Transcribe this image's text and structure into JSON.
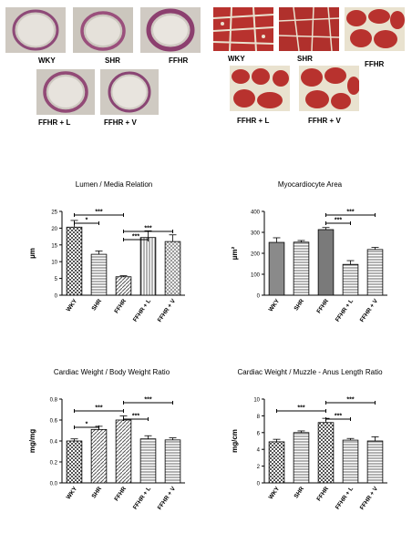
{
  "micrographs": {
    "vessels": [
      {
        "label": "WKY"
      },
      {
        "label": "SHR"
      },
      {
        "label": "FFHR"
      },
      {
        "label": "FFHR + L"
      },
      {
        "label": "FFHR + V"
      }
    ],
    "myocytes": [
      {
        "label": "WKY"
      },
      {
        "label": "SHR"
      },
      {
        "label": "FFHR"
      },
      {
        "label": "FFHR + L"
      },
      {
        "label": "FFHR + V"
      }
    ]
  },
  "colors": {
    "bar_dark": "#7a7a7a",
    "bar_light": "#d9d9d9",
    "vessel_wall": "#8e4a78",
    "myo_red": "#b8322e",
    "myo_bg": "#e9e2cf"
  },
  "chart_data": [
    {
      "type": "bar",
      "title": "Lumen / Media Relation",
      "categories": [
        "WKY",
        "SHR",
        "FFHR",
        "FFHR + L",
        "FFHR + V"
      ],
      "values": [
        20.3,
        12.2,
        5.5,
        17.2,
        16.0
      ],
      "errors": [
        2.0,
        1.0,
        0.3,
        2.0,
        2.0
      ],
      "patterns": [
        "check",
        "hline",
        "diag",
        "vline",
        "cross"
      ],
      "ylabel": "µm",
      "ylim": [
        0,
        25
      ],
      "yticks": [
        0,
        5,
        10,
        15,
        20,
        25
      ],
      "significance": [
        {
          "from": 0,
          "to": 2,
          "label": "***"
        },
        {
          "from": 0,
          "to": 1,
          "label": "*"
        },
        {
          "from": 2,
          "to": 4,
          "label": "***"
        },
        {
          "from": 2,
          "to": 3,
          "label": "***"
        }
      ]
    },
    {
      "type": "bar",
      "title": "Myocardiocyte Area",
      "categories": [
        "WKY",
        "SHR",
        "FFHR",
        "FFHR + L",
        "FFHR + V"
      ],
      "values": [
        252,
        253,
        313,
        147,
        218
      ],
      "errors": [
        22,
        8,
        10,
        18,
        10
      ],
      "patterns": [
        "solid",
        "hline",
        "solid",
        "hline",
        "hline"
      ],
      "ylabel": "µm²",
      "ylim": [
        0,
        400
      ],
      "yticks": [
        0,
        100,
        200,
        300,
        400
      ],
      "significance": [
        {
          "from": 2,
          "to": 4,
          "label": "***"
        },
        {
          "from": 2,
          "to": 3,
          "label": "***"
        }
      ]
    },
    {
      "type": "bar",
      "title": "Cardiac Weight  / Body Weight Ratio",
      "categories": [
        "WKY",
        "SHR",
        "FFHR",
        "FFHR + L",
        "FFHR + V"
      ],
      "values": [
        0.4,
        0.51,
        0.6,
        0.42,
        0.41
      ],
      "errors": [
        0.02,
        0.03,
        0.04,
        0.03,
        0.02
      ],
      "patterns": [
        "check",
        "diag",
        "diag",
        "hline",
        "hline"
      ],
      "ylabel": "mg/mg",
      "ylim": [
        0,
        0.8
      ],
      "yticks": [
        0.0,
        0.2,
        0.4,
        0.6,
        0.8
      ],
      "significance": [
        {
          "from": 2,
          "to": 4,
          "label": "***"
        },
        {
          "from": 0,
          "to": 2,
          "label": "***"
        },
        {
          "from": 2,
          "to": 3,
          "label": "***"
        },
        {
          "from": 0,
          "to": 1,
          "label": "*"
        }
      ]
    },
    {
      "type": "bar",
      "title": "Cardiac Weight / Muzzle - Anus Length Ratio",
      "categories": [
        "WKY",
        "SHR",
        "FFHR",
        "FFHR + L",
        "FFHR + V"
      ],
      "values": [
        4.9,
        6.0,
        7.2,
        5.1,
        5.0
      ],
      "errors": [
        0.3,
        0.2,
        0.5,
        0.2,
        0.5
      ],
      "patterns": [
        "check",
        "hline",
        "check",
        "hline",
        "hline"
      ],
      "ylabel": "mg/cm",
      "ylim": [
        0,
        10
      ],
      "yticks": [
        0,
        2,
        4,
        6,
        8,
        10
      ],
      "significance": [
        {
          "from": 2,
          "to": 4,
          "label": "***"
        },
        {
          "from": 0,
          "to": 2,
          "label": "***"
        },
        {
          "from": 2,
          "to": 3,
          "label": "***"
        }
      ]
    }
  ]
}
